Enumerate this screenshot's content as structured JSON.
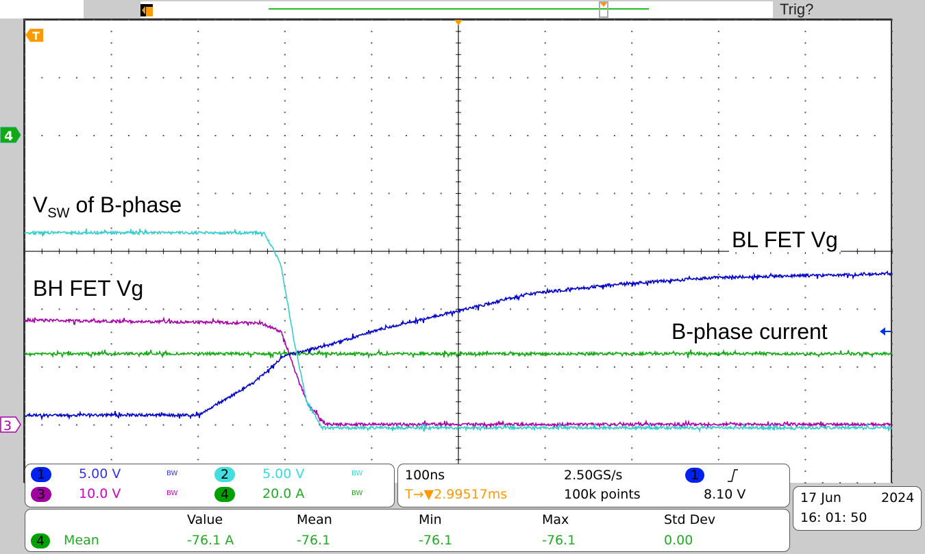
{
  "header": {
    "trigger_status": "Trig?"
  },
  "colors": {
    "ch1": "#0000cc",
    "ch2": "#33cccc",
    "ch3": "#aa00aa",
    "ch4": "#11aa11",
    "trigger": "#ff9900"
  },
  "channels": [
    {
      "num": "1",
      "scale": "5.00 V",
      "bw": "BW",
      "color": "#0000cc",
      "pill": "#0022ee"
    },
    {
      "num": "2",
      "scale": "5.00 V",
      "bw": "BW",
      "color": "#33dddd",
      "pill": "#44dddd"
    },
    {
      "num": "3",
      "scale": "10.0 V",
      "bw": "BW",
      "color": "#aa00aa",
      "pill": "#a000a0"
    },
    {
      "num": "4",
      "scale": "20.0 A",
      "bw": "BW",
      "color": "#11aa11",
      "pill": "#00a000"
    }
  ],
  "timebase": {
    "time_per_div": "100ns",
    "sample_rate": "2.50GS/s",
    "trigger_delay": "T→▼2.99517ms",
    "record_length": "100k points",
    "trigger_source": "1",
    "trigger_slope": "rising-edge-icon",
    "trigger_level": "8.10 V"
  },
  "measurements": {
    "headers": [
      "Value",
      "Mean",
      "Min",
      "Max",
      "Std Dev"
    ],
    "rows": [
      {
        "channel": "4",
        "name": "Mean",
        "values": [
          "-76.1 A",
          "-76.1",
          "-76.1",
          "-76.1",
          "0.00"
        ]
      }
    ]
  },
  "datetime": {
    "date": "17 Jun",
    "year": "2024",
    "time": "16: 01: 50"
  },
  "markers": {
    "trigger": "T",
    "ch4_ground": "4",
    "ch3_ground": "3"
  },
  "chart_data": {
    "type": "line",
    "title": "",
    "xlabel": "",
    "ylabel": "",
    "x_units": "ns",
    "y_units": "div",
    "xlim": [
      -500,
      500
    ],
    "ylim": [
      -4,
      4
    ],
    "grid": true,
    "annotations": [
      "V",
      "SW",
      " of B-phase",
      "BH FET Vg",
      "BL FET Vg",
      "B-phase current"
    ],
    "series": [
      {
        "name": "BL FET Vg",
        "channel": "1",
        "color": "#0000cc",
        "x": [
          -500,
          -299,
          -236,
          -200,
          -149,
          -86,
          0,
          80,
          182,
          300,
          500
        ],
        "y": [
          -2.83,
          -2.83,
          -2.27,
          -1.8,
          -1.62,
          -1.33,
          -1.03,
          -0.74,
          -0.57,
          -0.45,
          -0.39
        ]
      },
      {
        "name": "VSW of B-phase",
        "channel": "2",
        "color": "#33cccc",
        "x": [
          -500,
          -224,
          -205,
          -190,
          -175,
          -157,
          500
        ],
        "y": [
          0.32,
          0.32,
          -0.2,
          -1.5,
          -2.6,
          -3.05,
          -3.05
        ]
      },
      {
        "name": "BH FET Vg",
        "channel": "3",
        "color": "#aa00aa",
        "x": [
          -500,
          -228,
          -204,
          -185,
          -173,
          -153,
          500
        ],
        "y": [
          -1.19,
          -1.24,
          -1.39,
          -2.2,
          -2.65,
          -2.99,
          -2.99
        ]
      },
      {
        "name": "B-phase current",
        "channel": "4",
        "color": "#11aa11",
        "x": [
          -500,
          500
        ],
        "y": [
          -1.77,
          -1.77
        ]
      }
    ]
  }
}
